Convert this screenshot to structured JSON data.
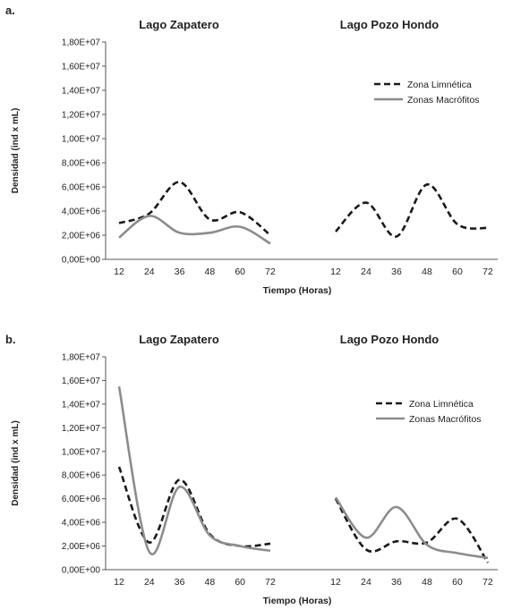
{
  "colors": {
    "limnetica": "#1a1a1a",
    "macrofitos": "#8c8c8c",
    "axis": "#555555"
  },
  "chart_data": [
    {
      "panel_label": "a.",
      "type": "line",
      "ylabel": "Densidad (ind x mL)",
      "xlabel": "Tiempo (Horas)",
      "ylim": [
        0,
        18000000
      ],
      "yticks": [
        "0,00E+00",
        "2,00E+06",
        "4,00E+06",
        "6,00E+06",
        "8,00E+06",
        "1,00E+07",
        "1,20E+07",
        "1,40E+07",
        "1,60E+07",
        "1,80E+07"
      ],
      "x": [
        12,
        24,
        36,
        48,
        60,
        72
      ],
      "legend": {
        "position": "top-right",
        "entries": [
          "Zona Limnética",
          "Zonas Macrófitos"
        ]
      },
      "groups": [
        {
          "title": "Lago Zapatero",
          "series": [
            {
              "name": "Zona Limnética",
              "style": "dashed",
              "values": [
                3000000,
                3800000,
                6400000,
                3300000,
                3900000,
                2000000
              ]
            },
            {
              "name": "Zonas Macrófitos",
              "style": "solid",
              "values": [
                1800000,
                3600000,
                2200000,
                2200000,
                2700000,
                1300000
              ]
            }
          ]
        },
        {
          "title": "Lago Pozo Hondo",
          "series": [
            {
              "name": "Zona Limnética",
              "style": "dashed",
              "values": [
                2300000,
                4700000,
                1900000,
                6200000,
                2900000,
                2600000
              ]
            }
          ]
        }
      ]
    },
    {
      "panel_label": "b.",
      "type": "line",
      "ylabel": "Densidad (ind x mL)",
      "xlabel": "Tiempo (Horas)",
      "ylim": [
        0,
        18000000
      ],
      "yticks": [
        "0,00E+00",
        "2,00E+06",
        "4,00E+06",
        "6,00E+06",
        "8,00E+06",
        "1,00E+07",
        "1,20E+07",
        "1,40E+07",
        "1,60E+07",
        "1,80E+07"
      ],
      "x": [
        12,
        24,
        36,
        48,
        60,
        72
      ],
      "legend": {
        "position": "top-right",
        "entries": [
          "Zona Limnética",
          "Zonas Macrófitos"
        ]
      },
      "groups": [
        {
          "title": "Lago Zapatero",
          "series": [
            {
              "name": "Zona Limnética",
              "style": "dashed",
              "values": [
                8700000,
                2300000,
                7600000,
                3000000,
                2000000,
                2200000
              ]
            },
            {
              "name": "Zonas Macrófitos",
              "style": "solid",
              "values": [
                15500000,
                1500000,
                7000000,
                2900000,
                2000000,
                1600000
              ]
            }
          ]
        },
        {
          "title": "Lago Pozo Hondo",
          "series": [
            {
              "name": "Zona Limnética",
              "style": "dashed",
              "values": [
                6000000,
                1700000,
                2400000,
                2300000,
                4300000,
                600000
              ]
            },
            {
              "name": "Zonas Macrófitos",
              "style": "solid",
              "values": [
                6100000,
                2700000,
                5300000,
                2100000,
                1400000,
                1000000
              ]
            }
          ]
        }
      ]
    }
  ]
}
